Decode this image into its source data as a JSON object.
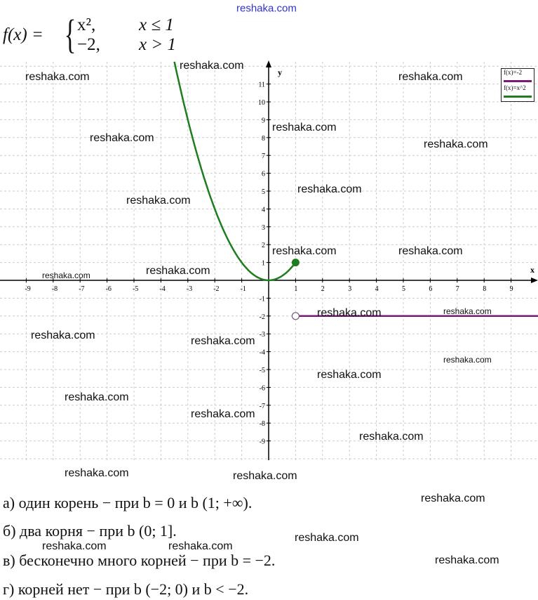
{
  "watermark": "reshaka.com",
  "formula": {
    "lhs": "f(x) =",
    "cases": [
      {
        "expr": "x²,",
        "cond": "x ≤ 1"
      },
      {
        "expr": "−2,",
        "cond": "x > 1"
      }
    ]
  },
  "legend": [
    {
      "label": "f(x)=-2",
      "color": "#7a1a78"
    },
    {
      "label": "f(x)=x^2",
      "color": "#1e7d1e"
    }
  ],
  "answers": [
    "а) один корень − при b = 0 и b (1; +∞).",
    "б) два корня − при b (0; 1].",
    "в) бесконечно много корней − при b = −2.",
    "г) корней нет − при b (−2; 0) и b < −2."
  ],
  "chart_data": {
    "type": "line",
    "xlabel": "x",
    "ylabel": "y",
    "xlim": [
      -9.9,
      10
    ],
    "ylim": [
      -10,
      12
    ],
    "x_ticks": [
      -9,
      -8,
      -7,
      -6,
      -5,
      -4,
      -3,
      -2,
      -1,
      1,
      2,
      3,
      4,
      5,
      6,
      7,
      8,
      9
    ],
    "y_ticks": [
      -9,
      -8,
      -7,
      -6,
      -5,
      -4,
      -3,
      -2,
      -1,
      1,
      2,
      3,
      4,
      5,
      6,
      7,
      8,
      9,
      10,
      11
    ],
    "grid": true,
    "legend_position": "top-right",
    "series": [
      {
        "name": "f(x)=x^2",
        "function": "x^2",
        "domain": [
          -3.5,
          1
        ],
        "color": "#1e7d1e",
        "end_point": {
          "x": 1,
          "y": 1,
          "filled": true
        }
      },
      {
        "name": "f(x)=-2",
        "function": "-2",
        "domain": [
          1,
          10
        ],
        "color": "#7a1a78",
        "start_point": {
          "x": 1,
          "y": -2,
          "filled": false
        }
      }
    ]
  }
}
